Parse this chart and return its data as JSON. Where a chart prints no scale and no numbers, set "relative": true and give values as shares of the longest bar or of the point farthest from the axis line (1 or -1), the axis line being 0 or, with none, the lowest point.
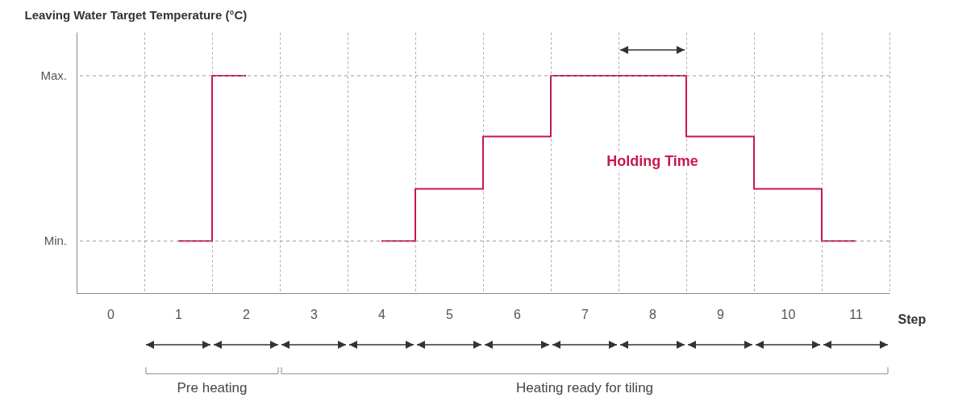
{
  "chart_data": {
    "type": "step",
    "relative": true,
    "ylabel": "Leaving Water Target Temperature (°C)",
    "xlabel": "Step",
    "categories": [
      "0",
      "1",
      "2",
      "3",
      "4",
      "5",
      "6",
      "7",
      "8",
      "9",
      "10",
      "11"
    ],
    "series": [
      {
        "color": "#c9184a",
        "values": [
          null,
          0.24,
          1,
          null,
          0.24,
          0.48,
          0.72,
          1,
          1,
          0.72,
          0.48,
          0.24
        ]
      }
    ],
    "ref_lines": [
      {
        "axis": "y",
        "value": 0.24,
        "label": "Min.",
        "line_style": "dashed"
      },
      {
        "axis": "y",
        "value": 1,
        "label": "Max.",
        "line_style": "dashed"
      }
    ],
    "annotations": [
      "Pre heating",
      "Heating ready for tiling",
      "Holding Time"
    ],
    "grid": "x",
    "marker": "none",
    "line_style": "solid"
  }
}
